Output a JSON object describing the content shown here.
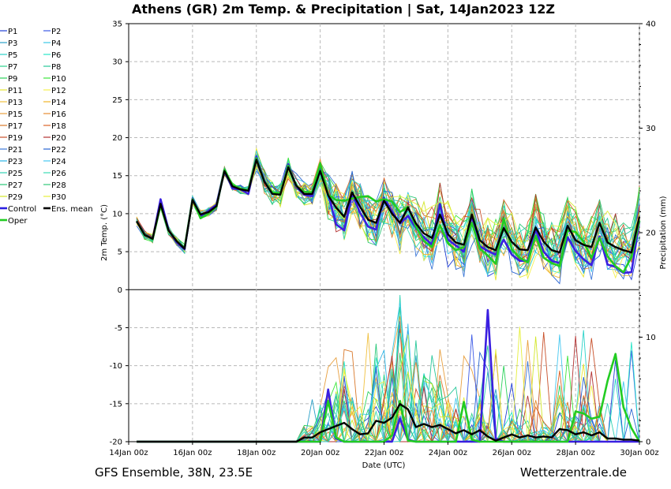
{
  "chart_data": {
    "type": "line",
    "title": "Athens  (GR)  2m Temp. & Precipitation | Sat, 14Jan2023 12Z",
    "ylabel": "2m Temp. (°C)",
    "ylabel_right": "Precipitation (mm)",
    "xlabel": "Date (UTC)",
    "footer_left": "GFS Ensemble, 38N, 23.5E",
    "footer_right": "Wetterzentrale.de",
    "ylim": [
      -20,
      35
    ],
    "ylim_right": [
      0,
      40
    ],
    "xlim_hours": [
      0,
      384
    ],
    "grid": true,
    "x_tick_labels": [
      "14Jan 00z",
      "16Jan 00z",
      "18Jan 00z",
      "20Jan 00z",
      "22Jan 00z",
      "24Jan 00z",
      "26Jan 00z",
      "28Jan 00z",
      "30Jan 00z"
    ],
    "y_ticks": [
      "35",
      "30",
      "25",
      "20",
      "15",
      "10",
      "5",
      "0",
      "-5",
      "-10",
      "-15",
      "-20"
    ],
    "y_ticks_right": [
      "40",
      "30",
      "20",
      "10",
      "0"
    ],
    "legend_left": [
      "P1",
      "P3",
      "P5",
      "P7",
      "P9",
      "P11",
      "P13",
      "P15",
      "P17",
      "P19",
      "P21",
      "P23",
      "P25",
      "P27",
      "P29",
      "Control",
      "Oper"
    ],
    "legend_right": [
      "P2",
      "P4",
      "P6",
      "P8",
      "P10",
      "P12",
      "P14",
      "P16",
      "P18",
      "P20",
      "P22",
      "P24",
      "P26",
      "P28",
      "P30",
      "Ens. mean"
    ],
    "legend_colors_left": [
      "#1f3fd6",
      "#2aa0c8",
      "#2ad2c8",
      "#2ad28c",
      "#2ad25a",
      "#e6e633",
      "#f0c040",
      "#e8a040",
      "#d9782a",
      "#c8502a",
      "#3c78d8",
      "#2ab4e6",
      "#32d2b4",
      "#28c878",
      "#d2e628",
      "#2b1fe0",
      "#22cc22"
    ],
    "legend_colors_right": [
      "#3c5ae6",
      "#3cc8e6",
      "#28e6c8",
      "#28c89a",
      "#3ce63c",
      "#f5f050",
      "#f0b428",
      "#e68c32",
      "#dc6428",
      "#b43232",
      "#2864d2",
      "#46c8f0",
      "#3cdcb4",
      "#32c87a",
      "#e6f03c",
      "#000000"
    ],
    "series": [
      {
        "name": "Ens. mean",
        "axis": "temperature",
        "x": [
          6,
          12,
          18,
          24,
          30,
          36,
          42,
          48,
          54,
          60,
          66,
          72,
          78,
          84,
          90,
          96,
          102,
          108,
          114,
          120,
          126,
          132,
          138,
          144,
          150,
          156,
          162,
          168,
          174,
          180,
          186,
          192,
          198,
          204,
          210,
          216,
          222,
          228,
          234,
          240,
          246,
          252,
          258,
          264,
          270,
          276,
          282,
          288,
          294,
          300,
          306,
          312,
          318,
          324,
          330,
          336,
          342,
          348,
          354,
          360,
          366,
          372,
          378,
          384
        ],
        "values": [
          9,
          7.2,
          6.7,
          11.3,
          7.8,
          6.4,
          5.4,
          11.8,
          9.9,
          10.2,
          11,
          15.6,
          13.6,
          13.2,
          13,
          17.1,
          14.2,
          12.6,
          12.5,
          16.1,
          13.7,
          12.6,
          12.6,
          15.6,
          12.4,
          10.8,
          9.6,
          12.8,
          10.9,
          9.2,
          8.8,
          11.7,
          10,
          8.8,
          10.8,
          8.7,
          7.4,
          6.8,
          9.9,
          7.3,
          6.2,
          5.9,
          9.9,
          6.5,
          5.6,
          5.2,
          8.1,
          6.3,
          5.3,
          5.2,
          8.2,
          6.3,
          5.2,
          4.9,
          8.4,
          6.5,
          5.9,
          5.6,
          8.8,
          6.2,
          5.6,
          5.2,
          4.9,
          9.6
        ]
      },
      {
        "name": "Control",
        "axis": "temperature",
        "x": [
          6,
          12,
          18,
          24,
          30,
          36,
          42,
          48,
          54,
          60,
          66,
          72,
          78,
          84,
          90,
          96,
          102,
          108,
          114,
          120,
          126,
          132,
          138,
          144,
          150,
          156,
          162,
          168,
          174,
          180,
          186,
          192,
          198,
          204,
          210,
          216,
          222,
          228,
          234,
          240,
          246,
          252,
          258,
          264,
          270,
          276,
          282,
          288,
          294,
          300,
          306,
          312,
          318,
          324,
          330,
          336,
          342,
          348,
          354,
          360,
          366,
          372,
          378,
          384
        ],
        "values": [
          9,
          7.4,
          6.6,
          11.9,
          7.9,
          6.2,
          5.3,
          12,
          9.6,
          10.4,
          11.2,
          15.8,
          13.3,
          13.2,
          12.6,
          17.5,
          14.3,
          12.7,
          12.6,
          16.5,
          13.5,
          12.5,
          12.3,
          16,
          12.6,
          8.6,
          7.8,
          12.6,
          10.1,
          8.3,
          7.9,
          12.1,
          10.3,
          8.7,
          9.7,
          8.1,
          6.9,
          5.9,
          11.3,
          6.6,
          5.8,
          5,
          9.7,
          5.7,
          5.1,
          4.6,
          6.6,
          4.6,
          3.8,
          3.8,
          8,
          5,
          3.8,
          3.5,
          6.9,
          5.1,
          4,
          3.2,
          7,
          3.3,
          3,
          2.2,
          2.3,
          9
        ]
      },
      {
        "name": "Oper",
        "axis": "temperature",
        "x": [
          6,
          12,
          18,
          24,
          30,
          36,
          42,
          48,
          54,
          60,
          66,
          72,
          78,
          84,
          90,
          96,
          102,
          108,
          114,
          120,
          126,
          132,
          138,
          144,
          150,
          156,
          162,
          168,
          174,
          180,
          186,
          192,
          198,
          204,
          210,
          216,
          222,
          228,
          234,
          240,
          246,
          252,
          258,
          264,
          270,
          276,
          282,
          288,
          294,
          300,
          306,
          312,
          318,
          324,
          330,
          336,
          342,
          348,
          354,
          360,
          366,
          372,
          378,
          384
        ],
        "values": [
          9,
          7.3,
          6.6,
          11.1,
          7.8,
          6.4,
          5.5,
          11.9,
          9.4,
          10,
          10.9,
          15.8,
          13.8,
          13.3,
          13.1,
          17.3,
          14.2,
          12.8,
          12.7,
          16.3,
          13.6,
          12.9,
          12.8,
          16.6,
          12.5,
          11.8,
          11.7,
          12,
          12.2,
          12.3,
          11.6,
          11.9,
          11.6,
          10.2,
          10.9,
          8.3,
          6.4,
          5.6,
          8.5,
          6.1,
          5.2,
          5.6,
          8.8,
          5.4,
          4.5,
          3.4,
          9.4,
          5.3,
          4.2,
          3.6,
          7.1,
          4.2,
          3.5,
          3.1,
          7.8,
          7.6,
          6.3,
          4.2,
          6.8,
          4.4,
          3.1,
          2.3,
          4.3,
          9.1
        ]
      },
      {
        "name": "Ens. mean",
        "axis": "precipitation",
        "x": [
          6,
          12,
          18,
          24,
          30,
          36,
          42,
          48,
          54,
          60,
          66,
          72,
          78,
          84,
          90,
          96,
          102,
          108,
          114,
          120,
          126,
          132,
          138,
          144,
          150,
          156,
          162,
          168,
          174,
          180,
          186,
          192,
          198,
          204,
          210,
          216,
          222,
          228,
          234,
          240,
          246,
          252,
          258,
          264,
          270,
          276,
          282,
          288,
          294,
          300,
          306,
          312,
          318,
          324,
          330,
          336,
          342,
          348,
          354,
          360,
          366,
          372,
          378,
          384
        ],
        "values": [
          0,
          0,
          0,
          0,
          0,
          0,
          0,
          0,
          0,
          0,
          0,
          0,
          0,
          0,
          0,
          0,
          0,
          0,
          0,
          0,
          0,
          0.4,
          0.4,
          0.9,
          1.2,
          1.5,
          1.8,
          1.2,
          0.7,
          0.8,
          2,
          1.8,
          2.3,
          3.6,
          3.1,
          1.4,
          1.7,
          1.4,
          1.6,
          1.2,
          0.8,
          1.1,
          0.7,
          1.1,
          0.5,
          0.1,
          0.4,
          0.7,
          0.4,
          0.6,
          0.4,
          0.5,
          0.4,
          1.2,
          1.1,
          0.7,
          0.9,
          0.6,
          0.9,
          0.3,
          0.3,
          0.2,
          0.2,
          0.1
        ]
      },
      {
        "name": "Control",
        "axis": "precipitation",
        "x": [
          6,
          12,
          18,
          24,
          30,
          36,
          42,
          48,
          54,
          60,
          66,
          72,
          78,
          84,
          90,
          96,
          102,
          108,
          114,
          120,
          126,
          132,
          138,
          144,
          150,
          156,
          162,
          168,
          174,
          180,
          186,
          192,
          198,
          204,
          210,
          216,
          222,
          228,
          234,
          240,
          246,
          252,
          258,
          264,
          270,
          276,
          282,
          288,
          294,
          300,
          306,
          312,
          318,
          324,
          330,
          336,
          342,
          348,
          354,
          360,
          366,
          372,
          378,
          384
        ],
        "values": [
          0,
          0,
          0,
          0,
          0,
          0,
          0,
          0,
          0,
          0,
          0,
          0,
          0,
          0,
          0,
          0,
          0,
          0,
          0,
          0,
          0,
          0,
          0,
          0,
          5,
          0.3,
          0,
          0,
          0,
          0,
          0,
          0,
          0,
          2.2,
          0.2,
          0,
          0,
          0,
          0,
          0,
          0,
          0,
          0,
          0,
          12.6,
          0.3,
          0,
          0,
          0,
          0,
          0,
          0,
          0,
          0,
          0,
          0,
          0,
          0,
          0,
          0,
          0,
          0,
          0,
          0
        ]
      },
      {
        "name": "Oper",
        "axis": "precipitation",
        "x": [
          6,
          12,
          18,
          24,
          30,
          36,
          42,
          48,
          54,
          60,
          66,
          72,
          78,
          84,
          90,
          96,
          102,
          108,
          114,
          120,
          126,
          132,
          138,
          144,
          150,
          156,
          162,
          168,
          174,
          180,
          186,
          192,
          198,
          204,
          210,
          216,
          222,
          228,
          234,
          240,
          246,
          252,
          258,
          264,
          270,
          276,
          282,
          288,
          294,
          300,
          306,
          312,
          318,
          324,
          330,
          336,
          342,
          348,
          354,
          360,
          366,
          372,
          378,
          384
        ],
        "values": [
          0,
          0,
          0,
          0,
          0,
          0,
          0,
          0,
          0,
          0,
          0,
          0,
          0,
          0,
          0,
          0,
          0,
          0,
          0,
          0,
          0,
          0,
          0,
          0,
          3.9,
          0.4,
          0,
          0,
          0,
          0,
          0,
          0,
          0.6,
          3.9,
          0.1,
          0,
          0,
          0,
          0,
          0,
          0,
          3.8,
          0.2,
          0,
          0,
          0,
          0,
          0,
          0,
          0,
          0,
          0,
          0,
          0,
          0,
          2.9,
          2.7,
          2.2,
          2.4,
          5.8,
          8.4,
          3.3,
          1.3,
          0
        ]
      }
    ]
  }
}
